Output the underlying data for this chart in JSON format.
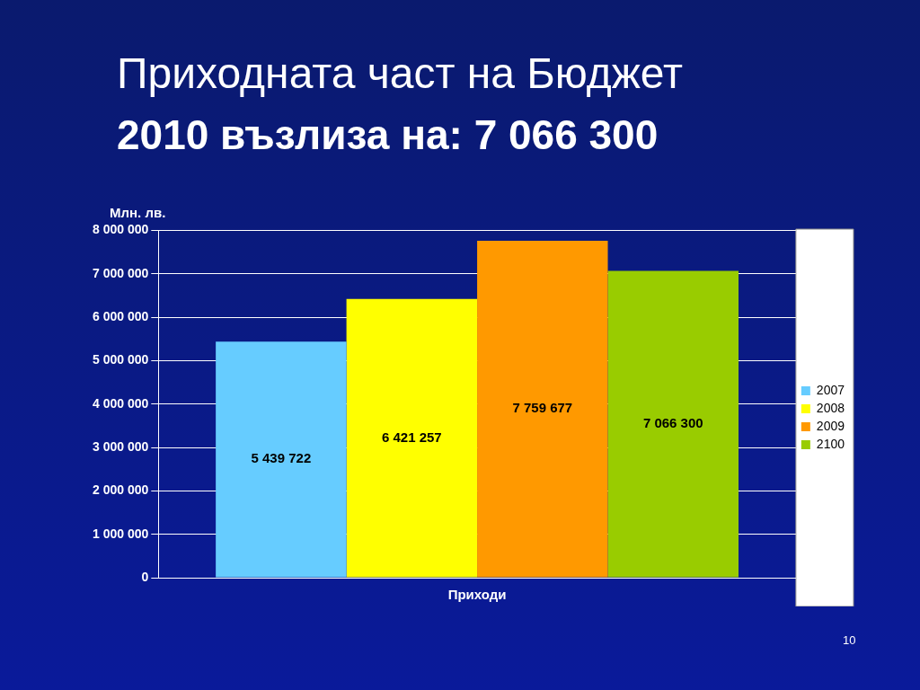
{
  "chart_data": {
    "type": "bar",
    "title": "Приходната част на Бюджет",
    "subtitle": "2010 възлиза на: 7 066 300",
    "ylabel": "Млн. лв.",
    "categories": [
      "Приходи"
    ],
    "series": [
      {
        "name": "2007",
        "color": "#66ccff",
        "values": [
          5439722
        ],
        "value_labels": [
          "5 439 722"
        ]
      },
      {
        "name": "2008",
        "color": "#ffff00",
        "values": [
          6421257
        ],
        "value_labels": [
          "6 421 257"
        ]
      },
      {
        "name": "2009",
        "color": "#ff9900",
        "values": [
          7759677
        ],
        "value_labels": [
          "7 759 677"
        ]
      },
      {
        "name": "2100",
        "color": "#99cc00",
        "values": [
          7066300
        ],
        "value_labels": [
          "7 066 300"
        ]
      }
    ],
    "ylim": [
      0,
      8000000
    ],
    "yticks": [
      {
        "value": 0,
        "label": "0"
      },
      {
        "value": 1000000,
        "label": "1 000 000"
      },
      {
        "value": 2000000,
        "label": "2 000 000"
      },
      {
        "value": 3000000,
        "label": "3 000 000"
      },
      {
        "value": 4000000,
        "label": "4 000 000"
      },
      {
        "value": 5000000,
        "label": "5 000 000"
      },
      {
        "value": 6000000,
        "label": "6 000 000"
      },
      {
        "value": 7000000,
        "label": "7 000 000"
      },
      {
        "value": 8000000,
        "label": "8 000 000"
      }
    ],
    "grid": "y",
    "legend": "right",
    "annotations": [
      "10"
    ]
  }
}
